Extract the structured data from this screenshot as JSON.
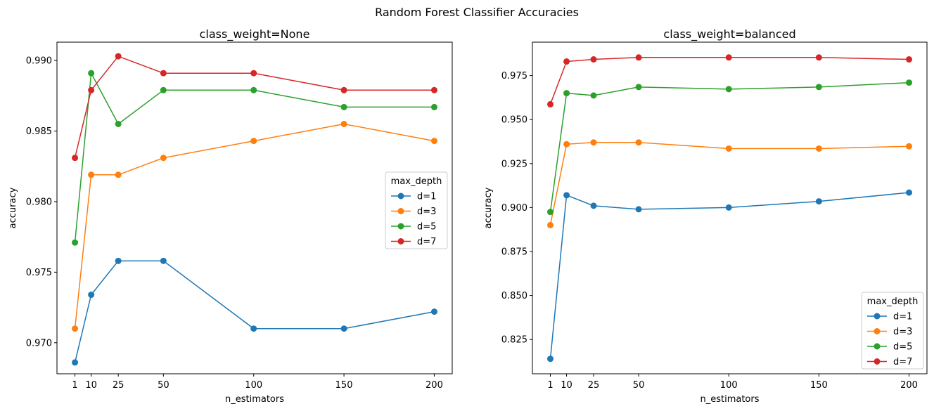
{
  "figure": {
    "suptitle": "Random Forest Classifier Accuracies"
  },
  "chart_data": [
    {
      "type": "line",
      "title": "class_weight=None",
      "xlabel": "n_estimators",
      "ylabel": "accuracy",
      "x": [
        1,
        10,
        25,
        50,
        100,
        150,
        200
      ],
      "xticks": [
        "1",
        "10",
        "25",
        "50",
        "100",
        "150",
        "200"
      ],
      "yticks": [
        "0.970",
        "0.975",
        "0.980",
        "0.985",
        "0.990"
      ],
      "ylim": [
        0.9678,
        0.9913
      ],
      "xlim": [
        -8.95,
        209.95
      ],
      "legend_title": "max_depth",
      "legend_placement": "center-right",
      "grid": false,
      "series": [
        {
          "name": "d=1",
          "color": "#1f77b4",
          "values": [
            0.9686,
            0.9734,
            0.9758,
            0.9758,
            0.971,
            0.971,
            0.9722
          ]
        },
        {
          "name": "d=3",
          "color": "#ff7f0e",
          "values": [
            0.971,
            0.9819,
            0.9819,
            0.9831,
            0.9843,
            0.9855,
            0.9843
          ]
        },
        {
          "name": "d=5",
          "color": "#2ca02c",
          "values": [
            0.9771,
            0.9891,
            0.9855,
            0.9879,
            0.9879,
            0.9867,
            0.9867
          ]
        },
        {
          "name": "d=7",
          "color": "#d62728",
          "values": [
            0.9831,
            0.9879,
            0.9903,
            0.9891,
            0.9891,
            0.9879,
            0.9879
          ]
        }
      ]
    },
    {
      "type": "line",
      "title": "class_weight=balanced",
      "xlabel": "n_estimators",
      "ylabel": "accuracy",
      "x": [
        1,
        10,
        25,
        50,
        100,
        150,
        200
      ],
      "xticks": [
        "1",
        "10",
        "25",
        "50",
        "100",
        "150",
        "200"
      ],
      "yticks": [
        "0.825",
        "0.850",
        "0.875",
        "0.900",
        "0.925",
        "0.950",
        "0.975"
      ],
      "ylim": [
        0.8055,
        0.994
      ],
      "xlim": [
        -8.95,
        209.95
      ],
      "legend_title": "max_depth",
      "legend_placement": "lower-right",
      "grid": false,
      "series": [
        {
          "name": "d=1",
          "color": "#1f77b4",
          "values": [
            0.814,
            0.907,
            0.901,
            0.899,
            0.9,
            0.9035,
            0.9085
          ]
        },
        {
          "name": "d=3",
          "color": "#ff7f0e",
          "values": [
            0.89,
            0.936,
            0.937,
            0.937,
            0.9335,
            0.9335,
            0.9348
          ]
        },
        {
          "name": "d=5",
          "color": "#2ca02c",
          "values": [
            0.8975,
            0.965,
            0.9637,
            0.9685,
            0.9673,
            0.9685,
            0.971
          ]
        },
        {
          "name": "d=7",
          "color": "#d62728",
          "values": [
            0.9587,
            0.983,
            0.9842,
            0.9853,
            0.9853,
            0.9853,
            0.9842
          ]
        }
      ]
    }
  ]
}
